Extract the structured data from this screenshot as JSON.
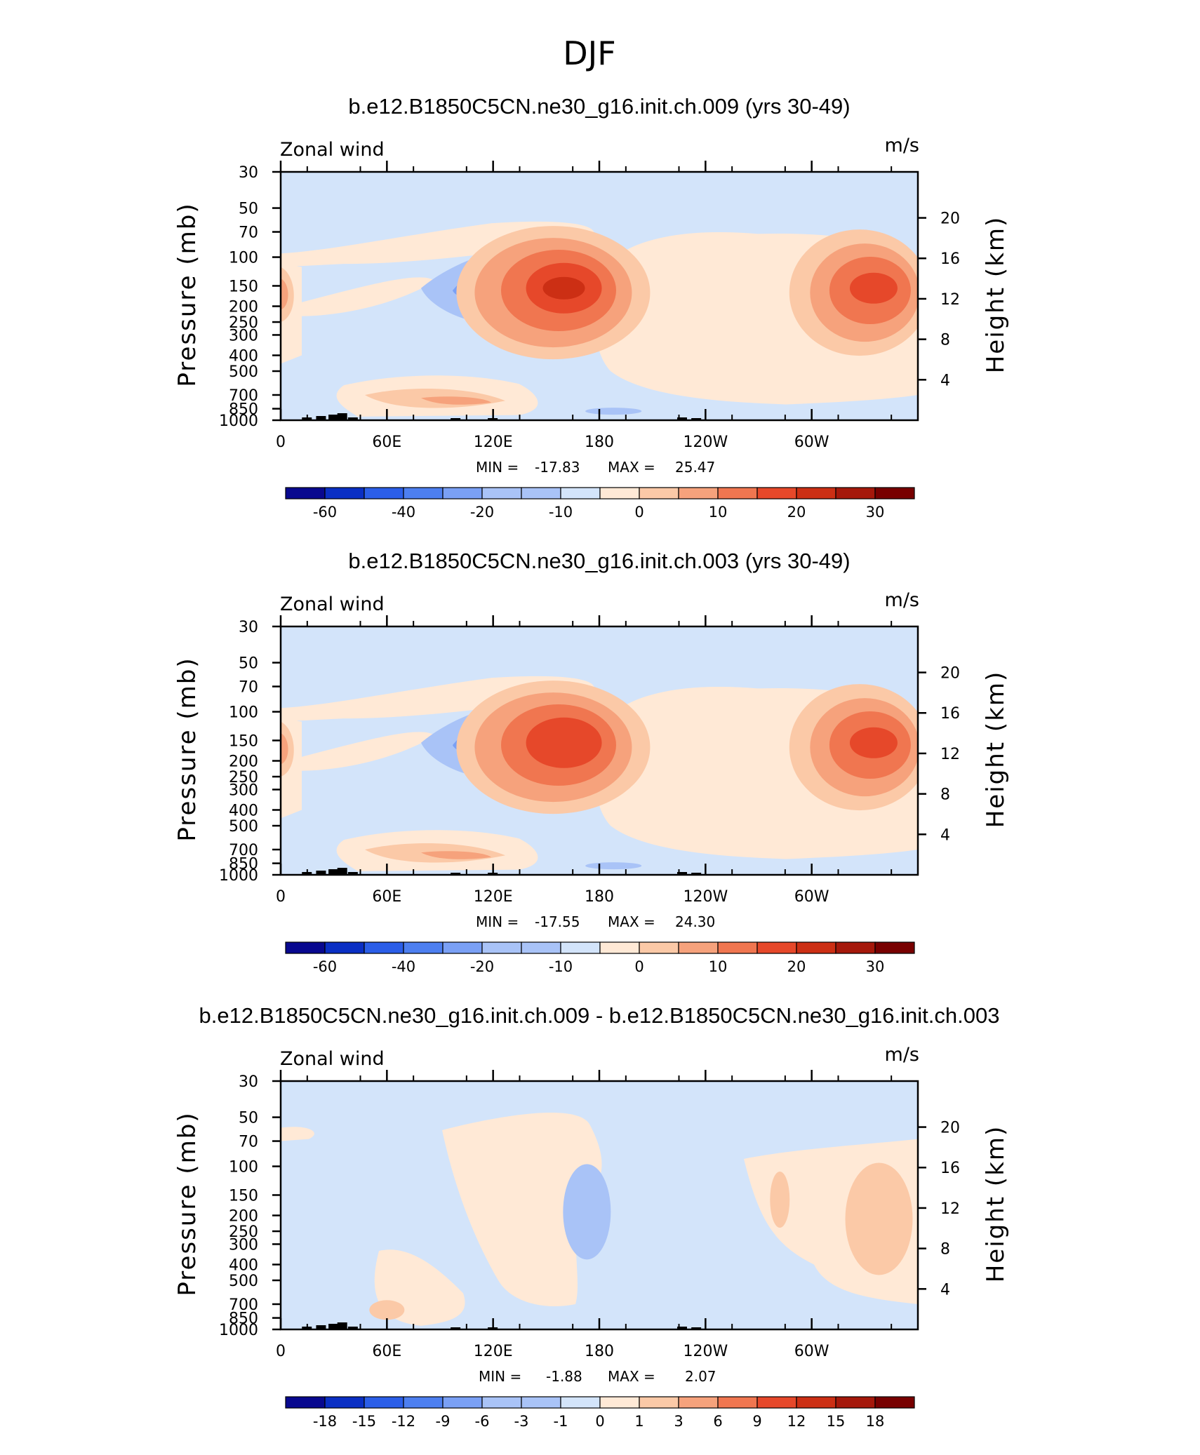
{
  "figure_title": "DJF",
  "palette": [
    "#08088f",
    "#0a2fc4",
    "#2b5ee8",
    "#4d7ff0",
    "#7aa0f5",
    "#a9c3f7",
    "#d3e4fa",
    "#ffe9d6",
    "#fbc9a7",
    "#f6a27c",
    "#f07650",
    "#e6482a",
    "#cc2f14",
    "#a5180b",
    "#780000"
  ],
  "chart_data": [
    {
      "type": "contour",
      "title": "b.e12.B1850C5CN.ne30_g16.init.ch.009 (yrs 30-49)",
      "left_string": "Zonal wind",
      "right_string": "m/s",
      "ylabel": "Pressure (mb)",
      "ylabel_right": "Height (km)",
      "x_ticks": [
        "0",
        "60E",
        "120E",
        "180",
        "120W",
        "60W"
      ],
      "y_ticks": [
        "30",
        "50",
        "70",
        "100",
        "150",
        "200",
        "250",
        "300",
        "400",
        "500",
        "700",
        "850",
        "1000"
      ],
      "height_ticks": [
        "20",
        "16",
        "12",
        "8",
        "4"
      ],
      "stats": {
        "min_label": "MIN =",
        "min": "-17.83",
        "max_label": "MAX =",
        "max": "25.47"
      },
      "levels": [
        -70,
        -60,
        -50,
        -40,
        -30,
        -20,
        -15,
        -10,
        -5,
        0,
        5,
        10,
        15,
        20,
        25,
        30,
        35
      ],
      "colorbar_labels": [
        "-60",
        "-40",
        "-20",
        "-10",
        "0",
        "10",
        "20",
        "30"
      ],
      "colorbar_label_positions": [
        1,
        3,
        5,
        7,
        9,
        11,
        13,
        15
      ]
    },
    {
      "type": "contour",
      "title": "b.e12.B1850C5CN.ne30_g16.init.ch.003 (yrs 30-49)",
      "left_string": "Zonal wind",
      "right_string": "m/s",
      "ylabel": "Pressure (mb)",
      "ylabel_right": "Height (km)",
      "x_ticks": [
        "0",
        "60E",
        "120E",
        "180",
        "120W",
        "60W"
      ],
      "y_ticks": [
        "30",
        "50",
        "70",
        "100",
        "150",
        "200",
        "250",
        "300",
        "400",
        "500",
        "700",
        "850",
        "1000"
      ],
      "height_ticks": [
        "20",
        "16",
        "12",
        "8",
        "4"
      ],
      "stats": {
        "min_label": "MIN =",
        "min": "-17.55",
        "max_label": "MAX =",
        "max": "24.30"
      },
      "levels": [
        -70,
        -60,
        -50,
        -40,
        -30,
        -20,
        -15,
        -10,
        -5,
        0,
        5,
        10,
        15,
        20,
        25,
        30,
        35
      ],
      "colorbar_labels": [
        "-60",
        "-40",
        "-20",
        "-10",
        "0",
        "10",
        "20",
        "30"
      ],
      "colorbar_label_positions": [
        1,
        3,
        5,
        7,
        9,
        11,
        13,
        15
      ]
    },
    {
      "type": "contour",
      "title": "b.e12.B1850C5CN.ne30_g16.init.ch.009 - b.e12.B1850C5CN.ne30_g16.init.ch.003",
      "left_string": "Zonal wind",
      "right_string": "m/s",
      "ylabel": "Pressure (mb)",
      "ylabel_right": "Height (km)",
      "x_ticks": [
        "0",
        "60E",
        "120E",
        "180",
        "120W",
        "60W"
      ],
      "y_ticks": [
        "30",
        "50",
        "70",
        "100",
        "150",
        "200",
        "250",
        "300",
        "400",
        "500",
        "700",
        "850",
        "1000"
      ],
      "height_ticks": [
        "20",
        "16",
        "12",
        "8",
        "4"
      ],
      "stats": {
        "min_label": "MIN =",
        "min": "-1.88",
        "max_label": "MAX =",
        "max": "2.07"
      },
      "levels": [
        -18,
        -15,
        -12,
        -9,
        -6,
        -3,
        -1,
        0,
        1,
        3,
        6,
        9,
        12,
        15,
        18
      ],
      "colorbar_labels": [
        "-18",
        "-15",
        "-12",
        "-9",
        "-6",
        "-3",
        "-1",
        "0",
        "1",
        "3",
        "6",
        "9",
        "12",
        "15",
        "18"
      ],
      "colorbar_label_positions": [
        1,
        2,
        3,
        4,
        5,
        6,
        7,
        8,
        9,
        10,
        11,
        12,
        13,
        14,
        15
      ]
    }
  ]
}
